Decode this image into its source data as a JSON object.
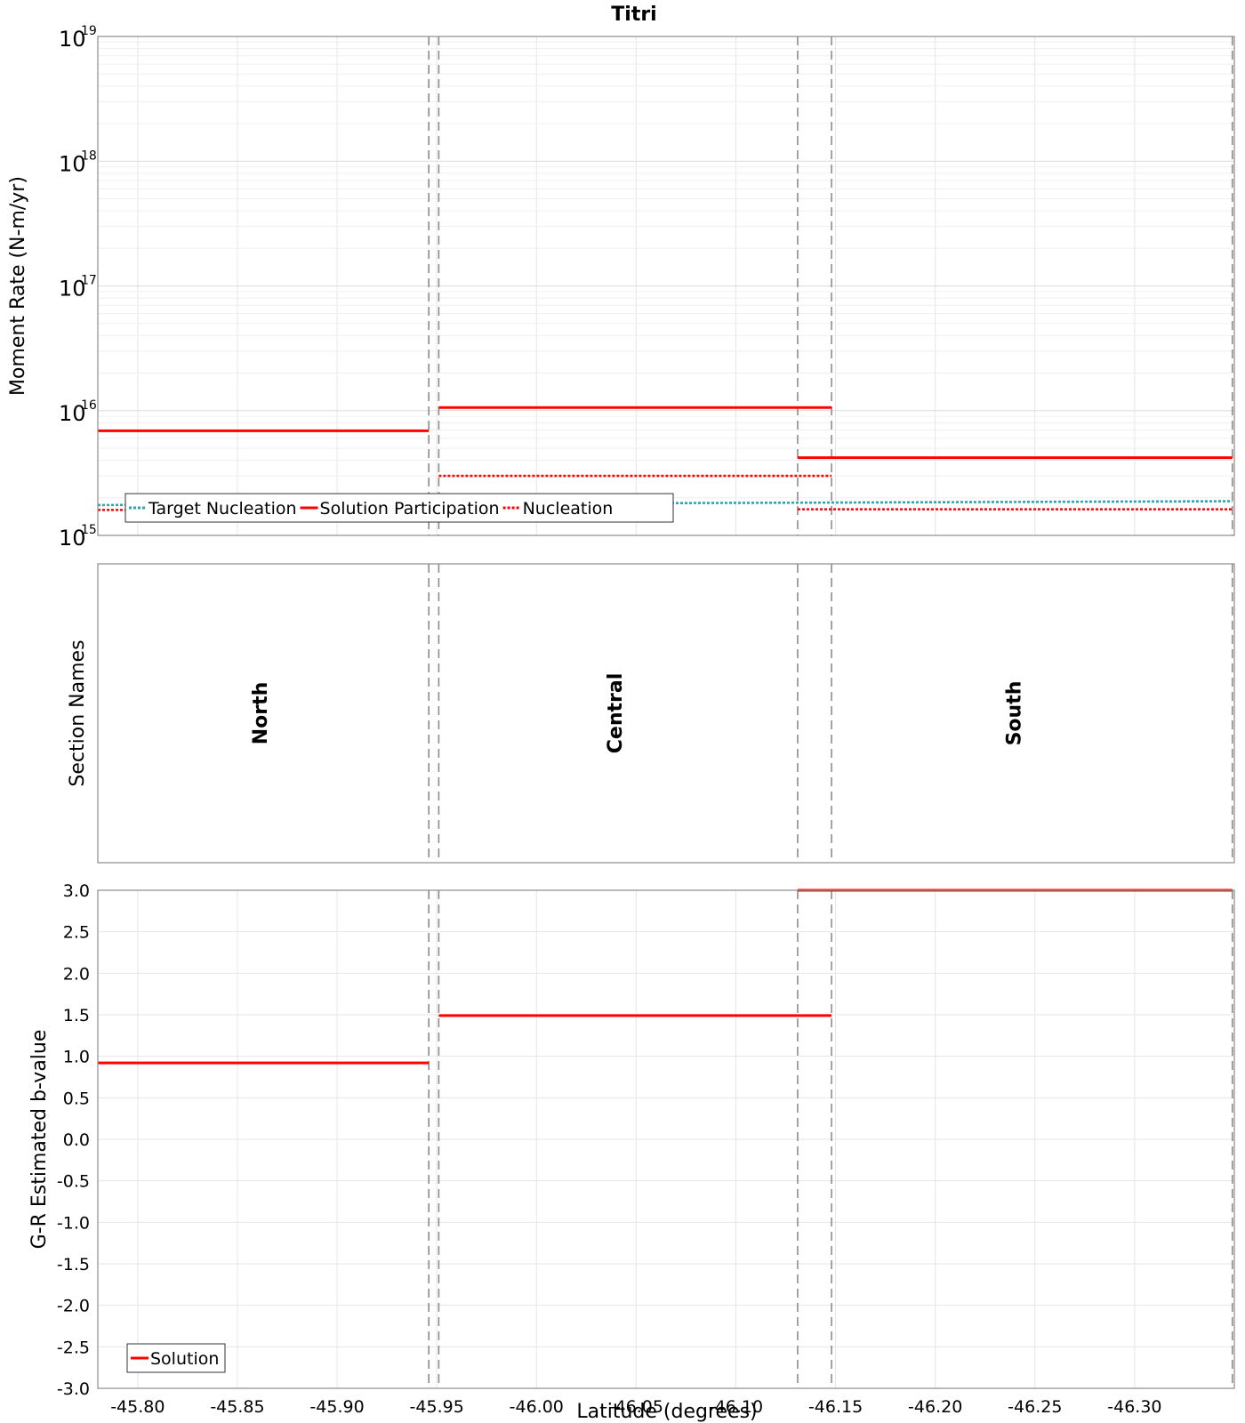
{
  "chart_data": {
    "type": "line",
    "title": "Titri",
    "xlabel": "Latitude (degrees)",
    "xlim": [
      -45.78,
      -46.35
    ],
    "x_ticks": [
      -45.8,
      -45.85,
      -45.9,
      -45.95,
      -46.0,
      -46.05,
      -46.1,
      -46.15,
      -46.2,
      -46.25,
      -46.3
    ],
    "x_tick_labels": [
      "-45.80",
      "-45.85",
      "-45.90",
      "-45.95",
      "-46.00",
      "-46.05",
      "-46.10",
      "-46.15",
      "-46.20",
      "-46.25",
      "-46.30"
    ],
    "section_boundaries": [
      -45.946,
      -45.951,
      -46.131,
      -46.148,
      -46.349
    ],
    "panels": [
      {
        "id": "moment_rate",
        "ylabel": "Moment Rate (N-m/yr)",
        "yscale": "log",
        "ylim": [
          1000000000000000.0,
          1e+19
        ],
        "y_ticks": [
          1000000000000000.0,
          1e+16,
          1e+17,
          1e+18,
          1e+19
        ],
        "y_tick_exponents": [
          "15",
          "16",
          "17",
          "18",
          "19"
        ],
        "y_tick_base": "10",
        "grid": true,
        "legend": {
          "placement": "bottom-left",
          "entries": [
            "Target Nucleation",
            "Solution Participation",
            "Nucleation"
          ]
        },
        "series": [
          {
            "name": "Target Nucleation",
            "color": "#2aa6b2",
            "style": "dotted",
            "segments": [
              {
                "x0": -45.78,
                "x1": -46.349,
                "y0": 1750000000000000.0,
                "y1": 1880000000000000.0
              }
            ]
          },
          {
            "name": "Solution Participation",
            "color": "#ff0000",
            "style": "solid",
            "segments": [
              {
                "x0": -45.78,
                "x1": -45.946,
                "y": 6900000000000000.0
              },
              {
                "x0": -45.951,
                "x1": -46.148,
                "y": 1.06e+16
              },
              {
                "x0": -46.131,
                "x1": -46.349,
                "y": 4200000000000000.0
              }
            ]
          },
          {
            "name": "Nucleation",
            "color": "#ff0000",
            "style": "dotted",
            "segments": [
              {
                "x0": -45.78,
                "x1": -45.946,
                "y": 1600000000000000.0
              },
              {
                "x0": -45.951,
                "x1": -46.148,
                "y": 3000000000000000.0
              },
              {
                "x0": -46.131,
                "x1": -46.349,
                "y": 1620000000000000.0
              }
            ]
          }
        ]
      },
      {
        "id": "section_names",
        "ylabel": "Section Names",
        "sections": [
          {
            "name": "North",
            "x": -45.862
          },
          {
            "name": "Central",
            "x": -46.04
          },
          {
            "name": "South",
            "x": -46.24
          }
        ]
      },
      {
        "id": "b_value",
        "ylabel": "G-R Estimated b-value",
        "yscale": "linear",
        "ylim": [
          -3.0,
          3.0
        ],
        "y_ticks": [
          -3.0,
          -2.5,
          -2.0,
          -1.5,
          -1.0,
          -0.5,
          0.0,
          0.5,
          1.0,
          1.5,
          2.0,
          2.5,
          3.0
        ],
        "y_tick_labels": [
          "-3.0",
          "-2.5",
          "-2.0",
          "-1.5",
          "-1.0",
          "-0.5",
          "0.0",
          "0.5",
          "1.0",
          "1.5",
          "2.0",
          "2.5",
          "3.0"
        ],
        "grid": true,
        "legend": {
          "placement": "bottom-left",
          "entries": [
            "Solution"
          ]
        },
        "series": [
          {
            "name": "Solution",
            "color": "#ff0000",
            "style": "solid",
            "segments": [
              {
                "x0": -45.78,
                "x1": -45.946,
                "y": 0.92
              },
              {
                "x0": -45.951,
                "x1": -46.148,
                "y": 1.49
              },
              {
                "x0": -46.131,
                "x1": -46.349,
                "y": 3.0
              }
            ]
          }
        ]
      }
    ]
  }
}
